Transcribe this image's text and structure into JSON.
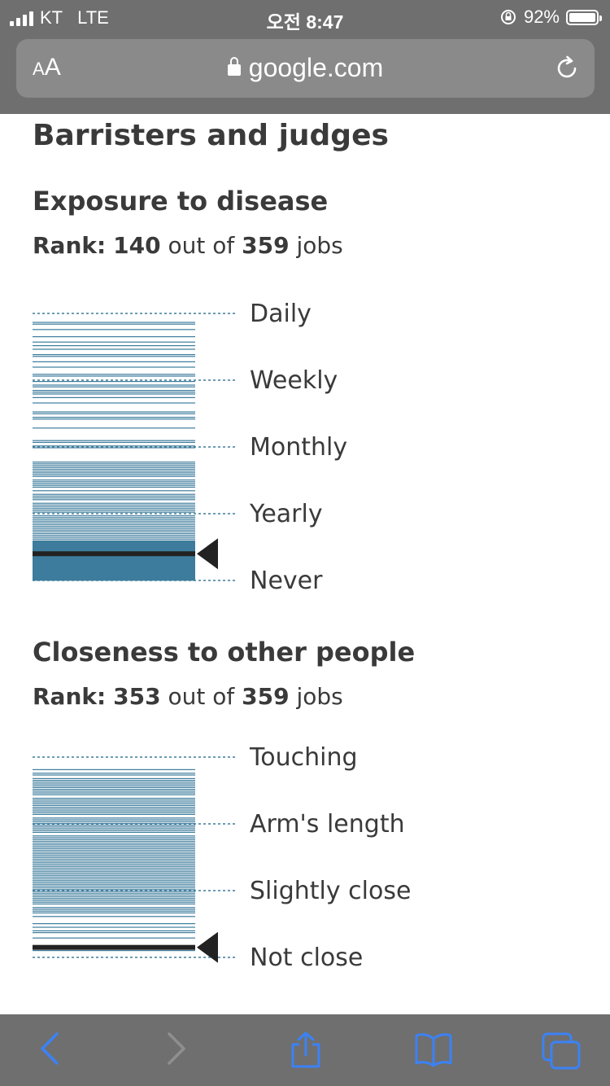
{
  "status": {
    "carrier": "KT",
    "network": "LTE",
    "time": "오전 8:47",
    "battery": "92%"
  },
  "browser": {
    "text_size_label": "AA",
    "url": "google.com"
  },
  "page": {
    "title": "Barristers and judges"
  },
  "sections": [
    {
      "heading": "Exposure to disease",
      "rank_label": "Rank:",
      "rank_value": "140",
      "out_of": "out of",
      "total": "359",
      "jobs": "jobs",
      "levels": [
        "Daily",
        "Weekly",
        "Monthly",
        "Yearly",
        "Never"
      ],
      "marker_level": 3.6
    },
    {
      "heading": "Closeness to other people",
      "rank_label": "Rank:",
      "rank_value": "353",
      "out_of": "out of",
      "total": "359",
      "jobs": "jobs",
      "levels": [
        "Touching",
        "Arm's length",
        "Slightly close",
        "Not close"
      ],
      "marker_level": 2.85
    }
  ],
  "colors": {
    "bar": "#3d7c9c",
    "marker": "#222222",
    "chrome": "#6f6f6f",
    "link": "#3b82f6"
  }
}
